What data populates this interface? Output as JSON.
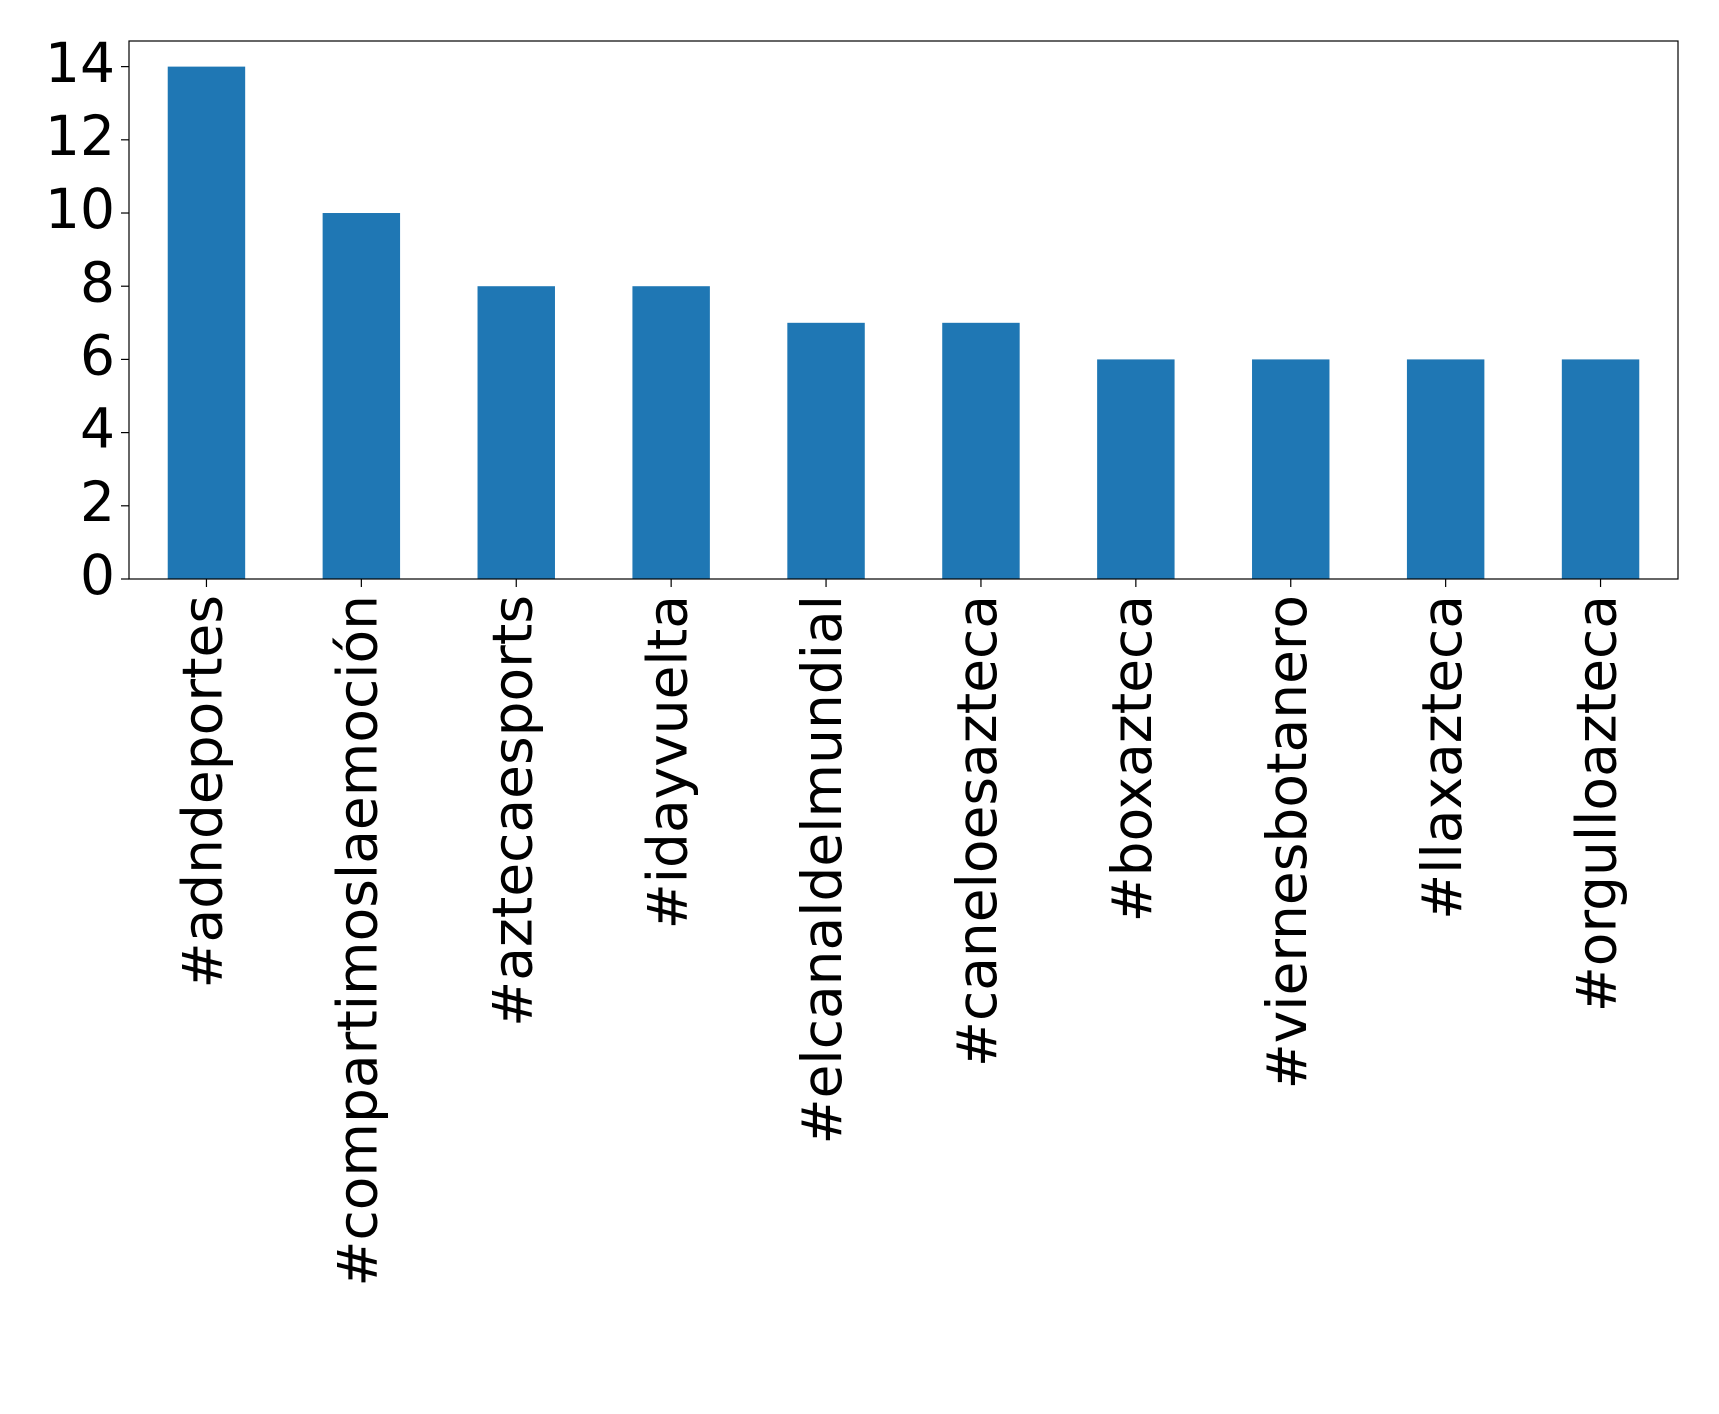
{
  "chart_data": {
    "type": "bar",
    "categories": [
      "#adndeportes",
      "#compartimoslaemoción",
      "#aztecaesports",
      "#idayvuelta",
      "#elcanaldelmundial",
      "#caneloesazteca",
      "#boxazteca",
      "#viernesbotanero",
      "#llaxazteca",
      "#orgulloazteca"
    ],
    "values": [
      14,
      10,
      8,
      8,
      7,
      7,
      6,
      6,
      6,
      6
    ],
    "color": "#1f77b4",
    "ylim": [
      0,
      14.7
    ],
    "yticks": [
      0,
      2,
      4,
      6,
      8,
      10,
      12,
      14
    ],
    "grid": false
  }
}
